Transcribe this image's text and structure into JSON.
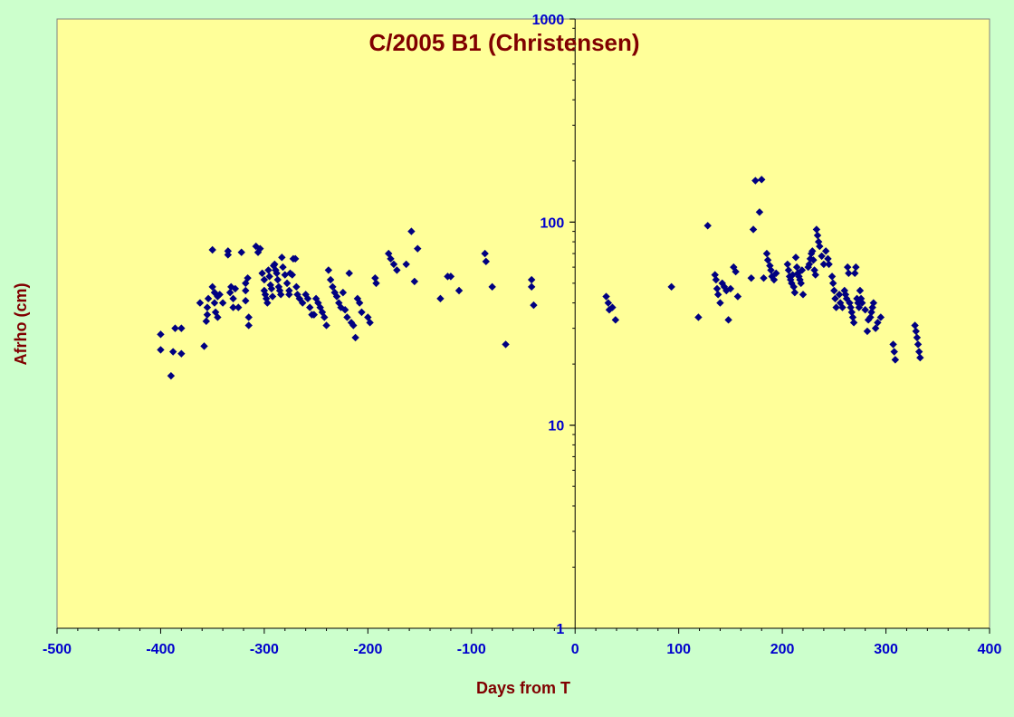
{
  "colors": {
    "background": "#ccffcc",
    "plot_area": "#ffff99",
    "title": "#800000",
    "tick_labels": "#0000cc",
    "axis_titles": "#800000",
    "marker": "#000080"
  },
  "chart_data": {
    "type": "scatter",
    "title": "C/2005 B1 (Christensen)",
    "xlabel": "Days from T",
    "ylabel": "Afrho (cm)",
    "xlim": [
      -500,
      400
    ],
    "ylim": [
      1,
      1000
    ],
    "yscale": "log",
    "grid": false,
    "legend": "none",
    "marker": "diamond",
    "x_ticks": [
      "-500",
      "-400",
      "-300",
      "-200",
      "-100",
      "0",
      "100",
      "200",
      "300",
      "400"
    ],
    "y_ticks": [
      "1",
      "10",
      "100",
      "1000"
    ],
    "series": [
      {
        "points": [
          [
            -400,
            28
          ],
          [
            -400,
            23.5
          ],
          [
            -390,
            17.5
          ],
          [
            -388,
            23
          ],
          [
            -386,
            30
          ],
          [
            -380,
            30
          ],
          [
            -380,
            22.5
          ],
          [
            -362,
            40
          ],
          [
            -358,
            24.5
          ],
          [
            -356,
            32.5
          ],
          [
            -355,
            35
          ],
          [
            -355,
            38
          ],
          [
            -354,
            42
          ],
          [
            -350,
            73
          ],
          [
            -350,
            48
          ],
          [
            -348,
            45
          ],
          [
            -348,
            40
          ],
          [
            -347,
            36
          ],
          [
            -345,
            34
          ],
          [
            -345,
            43
          ],
          [
            -343,
            44
          ],
          [
            -340,
            40
          ],
          [
            -335,
            69
          ],
          [
            -335,
            72
          ],
          [
            -333,
            45
          ],
          [
            -332,
            48
          ],
          [
            -330,
            42
          ],
          [
            -330,
            38
          ],
          [
            -328,
            47
          ],
          [
            -325,
            38
          ],
          [
            -322,
            71
          ],
          [
            -318,
            50
          ],
          [
            -318,
            46
          ],
          [
            -318,
            41
          ],
          [
            -316,
            53
          ],
          [
            -315,
            34
          ],
          [
            -315,
            31
          ],
          [
            -308,
            76
          ],
          [
            -306,
            71
          ],
          [
            -304,
            74
          ],
          [
            -302,
            56
          ],
          [
            -300,
            52
          ],
          [
            -300,
            46
          ],
          [
            -299,
            44
          ],
          [
            -298,
            42
          ],
          [
            -297,
            40
          ],
          [
            -296,
            58
          ],
          [
            -295,
            54
          ],
          [
            -294,
            49
          ],
          [
            -293,
            47
          ],
          [
            -292,
            43
          ],
          [
            -291,
            61
          ],
          [
            -290,
            62
          ],
          [
            -289,
            58
          ],
          [
            -288,
            56
          ],
          [
            -287,
            52
          ],
          [
            -286,
            48
          ],
          [
            -285,
            46
          ],
          [
            -284,
            44
          ],
          [
            -283,
            67
          ],
          [
            -282,
            60
          ],
          [
            -280,
            55
          ],
          [
            -278,
            50
          ],
          [
            -276,
            46
          ],
          [
            -276,
            44
          ],
          [
            -275,
            56
          ],
          [
            -273,
            55
          ],
          [
            -272,
            66
          ],
          [
            -270,
            66
          ],
          [
            -269,
            48
          ],
          [
            -268,
            44
          ],
          [
            -266,
            42
          ],
          [
            -263,
            40
          ],
          [
            -260,
            44
          ],
          [
            -258,
            42
          ],
          [
            -256,
            38
          ],
          [
            -254,
            35
          ],
          [
            -252,
            35
          ],
          [
            -250,
            42
          ],
          [
            -248,
            40
          ],
          [
            -246,
            38
          ],
          [
            -244,
            36
          ],
          [
            -242,
            34
          ],
          [
            -240,
            31
          ],
          [
            -238,
            58
          ],
          [
            -236,
            52
          ],
          [
            -234,
            48
          ],
          [
            -232,
            45
          ],
          [
            -230,
            43
          ],
          [
            -228,
            40
          ],
          [
            -226,
            38
          ],
          [
            -224,
            45
          ],
          [
            -222,
            37
          ],
          [
            -220,
            34
          ],
          [
            -218,
            56
          ],
          [
            -216,
            32
          ],
          [
            -214,
            31
          ],
          [
            -212,
            27
          ],
          [
            -210,
            42
          ],
          [
            -208,
            40
          ],
          [
            -206,
            36
          ],
          [
            -200,
            34
          ],
          [
            -198,
            32
          ],
          [
            -193,
            53
          ],
          [
            -192,
            50
          ],
          [
            -180,
            70
          ],
          [
            -178,
            66
          ],
          [
            -175,
            62
          ],
          [
            -172,
            58
          ],
          [
            -163,
            62
          ],
          [
            -158,
            90
          ],
          [
            -155,
            51
          ],
          [
            -152,
            74
          ],
          [
            -130,
            42
          ],
          [
            -123,
            54
          ],
          [
            -120,
            54
          ],
          [
            -112,
            46
          ],
          [
            -87,
            70
          ],
          [
            -86,
            64
          ],
          [
            -80,
            48
          ],
          [
            -67,
            25
          ],
          [
            -42,
            52
          ],
          [
            -42,
            48
          ],
          [
            -40,
            39
          ],
          [
            30,
            43
          ],
          [
            32,
            40
          ],
          [
            33,
            37
          ],
          [
            36,
            38
          ],
          [
            39,
            33
          ],
          [
            93,
            48
          ],
          [
            119,
            34
          ],
          [
            128,
            96
          ],
          [
            135,
            55
          ],
          [
            136,
            52
          ],
          [
            137,
            47
          ],
          [
            138,
            44
          ],
          [
            140,
            40
          ],
          [
            142,
            50
          ],
          [
            144,
            48
          ],
          [
            146,
            46
          ],
          [
            148,
            33
          ],
          [
            150,
            47
          ],
          [
            153,
            60
          ],
          [
            155,
            57
          ],
          [
            157,
            43
          ],
          [
            170,
            53
          ],
          [
            172,
            92
          ],
          [
            174,
            160
          ],
          [
            178,
            112
          ],
          [
            180,
            162
          ],
          [
            182,
            53
          ],
          [
            185,
            70
          ],
          [
            186,
            65
          ],
          [
            188,
            61
          ],
          [
            189,
            58
          ],
          [
            190,
            54
          ],
          [
            192,
            52
          ],
          [
            194,
            56
          ],
          [
            205,
            62
          ],
          [
            206,
            58
          ],
          [
            207,
            54
          ],
          [
            208,
            52
          ],
          [
            209,
            50
          ],
          [
            210,
            55
          ],
          [
            211,
            48
          ],
          [
            212,
            45
          ],
          [
            213,
            67
          ],
          [
            214,
            60
          ],
          [
            215,
            56
          ],
          [
            216,
            54
          ],
          [
            217,
            52
          ],
          [
            218,
            50
          ],
          [
            219,
            58
          ],
          [
            220,
            44
          ],
          [
            225,
            60
          ],
          [
            226,
            62
          ],
          [
            227,
            66
          ],
          [
            228,
            70
          ],
          [
            229,
            72
          ],
          [
            230,
            65
          ],
          [
            231,
            58
          ],
          [
            232,
            55
          ],
          [
            233,
            92
          ],
          [
            234,
            86
          ],
          [
            235,
            80
          ],
          [
            236,
            76
          ],
          [
            238,
            68
          ],
          [
            240,
            62
          ],
          [
            242,
            72
          ],
          [
            244,
            66
          ],
          [
            245,
            62
          ],
          [
            248,
            54
          ],
          [
            249,
            50
          ],
          [
            250,
            46
          ],
          [
            251,
            42
          ],
          [
            252,
            38
          ],
          [
            255,
            44
          ],
          [
            256,
            40
          ],
          [
            258,
            38
          ],
          [
            260,
            46
          ],
          [
            261,
            44
          ],
          [
            262,
            42
          ],
          [
            263,
            60
          ],
          [
            264,
            56
          ],
          [
            265,
            40
          ],
          [
            266,
            38
          ],
          [
            267,
            36
          ],
          [
            268,
            34
          ],
          [
            269,
            32
          ],
          [
            270,
            56
          ],
          [
            271,
            60
          ],
          [
            272,
            42
          ],
          [
            273,
            40
          ],
          [
            274,
            38
          ],
          [
            275,
            46
          ],
          [
            276,
            42
          ],
          [
            277,
            40
          ],
          [
            280,
            37
          ],
          [
            282,
            29
          ],
          [
            283,
            33
          ],
          [
            285,
            34
          ],
          [
            286,
            36
          ],
          [
            287,
            38
          ],
          [
            288,
            40
          ],
          [
            290,
            30
          ],
          [
            292,
            32
          ],
          [
            295,
            34
          ],
          [
            307,
            25
          ],
          [
            308,
            23
          ],
          [
            309,
            21
          ],
          [
            328,
            31
          ],
          [
            329,
            29
          ],
          [
            330,
            27
          ],
          [
            331,
            25
          ],
          [
            332,
            23
          ],
          [
            333,
            21.5
          ]
        ]
      }
    ]
  }
}
